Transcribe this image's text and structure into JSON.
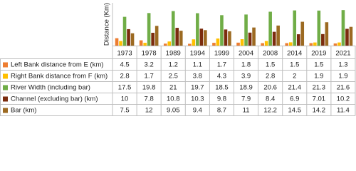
{
  "chart_data": {
    "type": "bar",
    "y_label": "Distance (Km)",
    "categories": [
      "1973",
      "1978",
      "1989",
      "1994",
      "1999",
      "2004",
      "2008",
      "2014",
      "2019",
      "2021"
    ],
    "series": [
      {
        "name": "Left Bank distance from E (km)",
        "color": "#ed7d31",
        "values": [
          4.5,
          3.2,
          1.2,
          1.1,
          1.7,
          1.8,
          1.5,
          1.5,
          1.5,
          1.3
        ]
      },
      {
        "name": "Right Bank distance from F (km)",
        "color": "#ffc000",
        "values": [
          2.8,
          1.7,
          2.5,
          3.8,
          4.3,
          3.9,
          2.8,
          2,
          1.9,
          1.9
        ]
      },
      {
        "name": "River Width (including bar)",
        "color": "#70ad47",
        "values": [
          17.5,
          19.8,
          21,
          19.7,
          18.5,
          18.9,
          20.6,
          21.4,
          21.3,
          21.6
        ]
      },
      {
        "name": "Channel (excluding bar) (km)",
        "color": "#7b2c0e",
        "values": [
          10,
          7.8,
          10.8,
          10.3,
          9.8,
          7.9,
          8.4,
          6.9,
          7.01,
          10.2
        ]
      },
      {
        "name": "Bar (km)",
        "color": "#9c6a22",
        "values": [
          7.5,
          12,
          9.05,
          9.4,
          8.7,
          11,
          12.2,
          14.5,
          14.2,
          11.4
        ]
      }
    ],
    "ylim": [
      0,
      26
    ]
  }
}
